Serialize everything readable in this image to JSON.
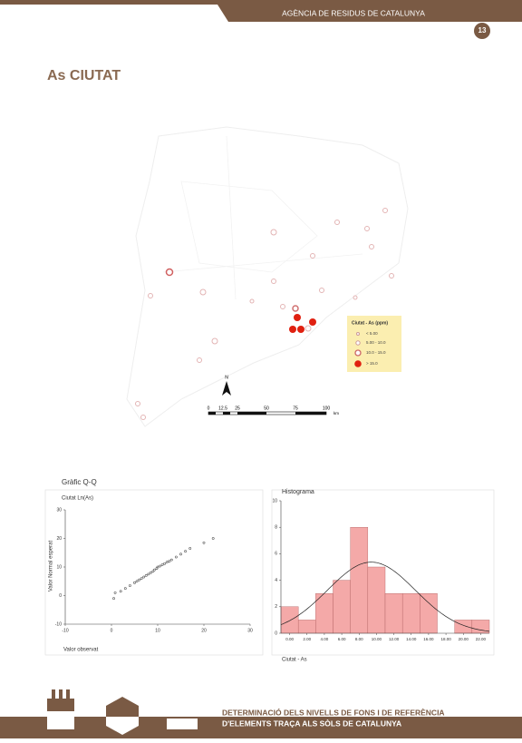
{
  "header": {
    "agency": "AGÈNCIA DE RESIDUS DE CATALUNYA",
    "page": "13"
  },
  "title": "As CIUTAT",
  "map": {
    "legend": {
      "title": "Ciutat - As (ppm)",
      "items": [
        "< 5.00",
        "5.00 - 10.0",
        "10.0 - 15.0",
        "> 15.0"
      ]
    },
    "north": "N",
    "scale": [
      "0",
      "12.5",
      "25",
      "50",
      "75",
      "100"
    ],
    "unit": "km"
  },
  "chart_data": [
    {
      "type": "scatter",
      "title": "Gràfic Q-Q",
      "subtitle": "Ciutat Ln(As)",
      "x_label": "Valor observat",
      "y_label": "Valor Normal esperat",
      "x": [
        0.5,
        0.8,
        2,
        3,
        4,
        5,
        5.5,
        6,
        6.5,
        7,
        7.5,
        8,
        8.5,
        9,
        9.3,
        9.8,
        10,
        10.5,
        11,
        11.5,
        12,
        12.5,
        13,
        14,
        15,
        16,
        17,
        20,
        22
      ],
      "y": [
        -1,
        1,
        1.5,
        2.5,
        3.5,
        4.5,
        5,
        5.5,
        6,
        6.5,
        7,
        7.5,
        8,
        8.5,
        9,
        9.5,
        10,
        10.3,
        10.8,
        11.2,
        11.7,
        12,
        12.5,
        13.5,
        14.5,
        15.5,
        16.5,
        18.5,
        20
      ],
      "color": "#555555",
      "xlim": [
        -10,
        30
      ],
      "xticks": [
        -10,
        0,
        10,
        20,
        30
      ],
      "ylim": [
        -10,
        30
      ],
      "yticks": [
        -10,
        0,
        10,
        20,
        30
      ]
    },
    {
      "type": "histogram",
      "title": "Histograma",
      "x_label": "Ciutat - As",
      "bins": [
        -1,
        1,
        3,
        5,
        7,
        9,
        11,
        13,
        15,
        17,
        19,
        21,
        23
      ],
      "counts": [
        2,
        1,
        3,
        4,
        8,
        5,
        3,
        3,
        3,
        0,
        1,
        1
      ],
      "color": "#f4a9a8",
      "xlim": [
        -1,
        23
      ],
      "xticks": [
        {
          "value": 0,
          "label": "0.00"
        },
        {
          "value": 2,
          "label": "2.00"
        },
        {
          "value": 4,
          "label": "4.00"
        },
        {
          "value": 6,
          "label": "6.00"
        },
        {
          "value": 8,
          "label": "8.00"
        },
        {
          "value": 10,
          "label": "10.00"
        },
        {
          "value": 12,
          "label": "12.00"
        },
        {
          "value": 14,
          "label": "14.00"
        },
        {
          "value": 16,
          "label": "16.00"
        },
        {
          "value": 18,
          "label": "18.00"
        },
        {
          "value": 20,
          "label": "20.00"
        },
        {
          "value": 22,
          "label": "22.00"
        }
      ],
      "ylim": [
        0,
        10
      ],
      "yticks": [
        0,
        2,
        4,
        6,
        8,
        10
      ]
    }
  ],
  "footer": {
    "line1": "DETERMINACIÓ DELS NIVELLS DE FONS I DE REFERÈNCIA",
    "line2": "D'ELEMENTS TRAÇA ALS SÒLS DE CATALUNYA"
  }
}
